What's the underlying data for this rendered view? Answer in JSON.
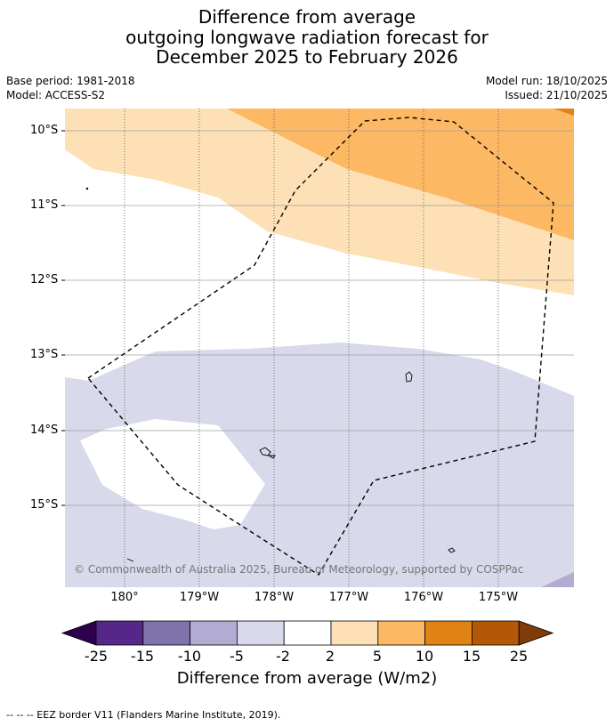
{
  "title": {
    "line1": "Difference from average",
    "line2": "outgoing longwave radiation forecast for",
    "line3": "December 2025 to February 2026"
  },
  "meta": {
    "base_period": "Base period: 1981-2018",
    "model": "Model: ACCESS-S2",
    "model_run": "Model run: 18/10/2025",
    "issued": "Issued: 21/10/2025"
  },
  "map": {
    "lat_labels": [
      "10°S",
      "11°S",
      "12°S",
      "13°S",
      "14°S",
      "15°S"
    ],
    "lon_labels": [
      "180°",
      "179°W",
      "178°W",
      "177°W",
      "176°W",
      "175°W"
    ],
    "copyright": "© Commonwealth of Australia 2025, Bureau of Meteorology, supported by COSPPac",
    "colors": {
      "light_orange": "#fde0b5",
      "mid_orange": "#fcb862",
      "dark_orange": "#e08214",
      "light_purple": "#d8d9ea",
      "mid_purple": "#b2abd2"
    }
  },
  "colorbar": {
    "ticks": [
      "-25",
      "-15",
      "-10",
      "-5",
      "-2",
      "2",
      "5",
      "10",
      "15",
      "25"
    ],
    "colors": [
      "#2d004b",
      "#542788",
      "#8073ac",
      "#b2abd2",
      "#d8daeb",
      "#ffffff",
      "#fee0b6",
      "#fdb863",
      "#e08214",
      "#b35806",
      "#7f3b08"
    ],
    "label": "Difference from average (W/m2)"
  },
  "footer": "--  --  -- EEZ border V11 (Flanders Marine Institute, 2019)."
}
